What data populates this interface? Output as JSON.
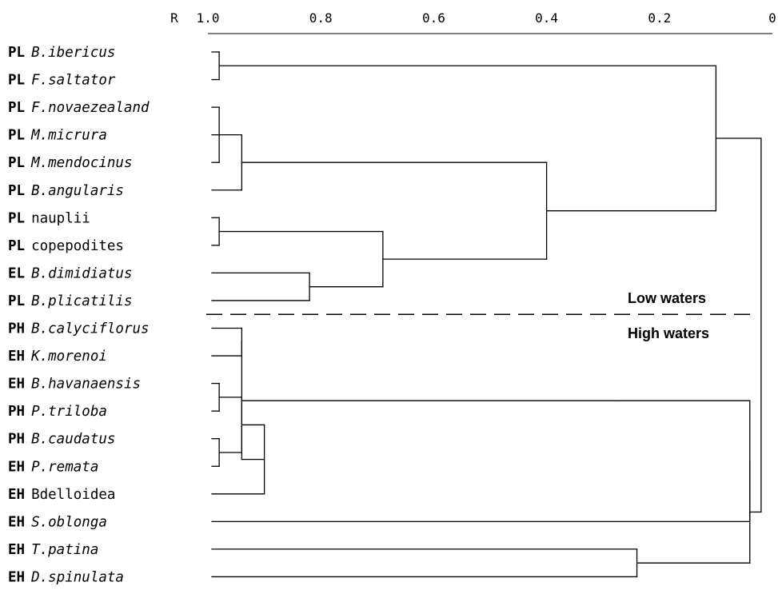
{
  "chart_data": {
    "type": "dendrogram",
    "axis_label": "R",
    "ticks": [
      "1.0",
      "0.8",
      "0.6",
      "0.4",
      "0.2",
      "0"
    ],
    "xlim": [
      1.0,
      0
    ],
    "leaves": [
      {
        "group": "PL",
        "name": "B.ibericus",
        "italic": true
      },
      {
        "group": "PL",
        "name": "F.saltator",
        "italic": true
      },
      {
        "group": "PL",
        "name": "F.novaezealand",
        "italic": true
      },
      {
        "group": "PL",
        "name": "M.micrura",
        "italic": true
      },
      {
        "group": "PL",
        "name": "M.mendocinus",
        "italic": true
      },
      {
        "group": "PL",
        "name": "B.angularis",
        "italic": true
      },
      {
        "group": "PL",
        "name": "nauplii",
        "italic": false
      },
      {
        "group": "PL",
        "name": "copepodites",
        "italic": false
      },
      {
        "group": "EL",
        "name": "B.dimidiatus",
        "italic": true
      },
      {
        "group": "PL",
        "name": "B.plicatilis",
        "italic": true
      },
      {
        "group": "PH",
        "name": "B.calyciflorus",
        "italic": true
      },
      {
        "group": "EH",
        "name": "K.morenoi",
        "italic": true
      },
      {
        "group": "EH",
        "name": "B.havanaensis",
        "italic": true
      },
      {
        "group": "PH",
        "name": "P.triloba",
        "italic": true
      },
      {
        "group": "PH",
        "name": "B.caudatus",
        "italic": true
      },
      {
        "group": "EH",
        "name": "P.remata",
        "italic": true
      },
      {
        "group": "EH",
        "name": "Bdelloidea",
        "italic": false
      },
      {
        "group": "EH",
        "name": "S.oblonga",
        "italic": true
      },
      {
        "group": "EH",
        "name": "T.patina",
        "italic": true
      },
      {
        "group": "EH",
        "name": "D.spinulata",
        "italic": true
      }
    ],
    "merges": [
      {
        "children": [
          "L0",
          "L1"
        ],
        "r": 0.98
      },
      {
        "children": [
          "L2",
          "L3",
          "L4"
        ],
        "r": 0.98
      },
      {
        "children": [
          "L6",
          "L7"
        ],
        "r": 0.98
      },
      {
        "children": [
          "L12",
          "L13"
        ],
        "r": 0.98
      },
      {
        "children": [
          "L14",
          "L15"
        ],
        "r": 0.98
      },
      {
        "children": [
          "N1",
          "L5"
        ],
        "r": 0.94
      },
      {
        "children": [
          "L8",
          "L9"
        ],
        "r": 0.82
      },
      {
        "children": [
          "N2",
          "N6"
        ],
        "r": 0.69
      },
      {
        "children": [
          "N5",
          "N7"
        ],
        "r": 0.4
      },
      {
        "children": [
          "N0",
          "N8"
        ],
        "r": 0.1
      },
      {
        "children": [
          "L10",
          "L11"
        ],
        "r": 0.94
      },
      {
        "children": [
          "N3",
          "N4"
        ],
        "r": 0.94
      },
      {
        "children": [
          "N11",
          "L16"
        ],
        "r": 0.9
      },
      {
        "children": [
          "N10",
          "N12"
        ],
        "r": 0.94
      },
      {
        "children": [
          "N13"
        ],
        "r": 0.28
      },
      {
        "children": [
          "L18",
          "L19"
        ],
        "r": 0.24
      },
      {
        "children": [
          "N14",
          "L17"
        ],
        "r": 0.04
      },
      {
        "children": [
          "N16",
          "N15"
        ],
        "r": 0.04
      },
      {
        "children": [
          "N9",
          "N17"
        ],
        "r": 0.02
      }
    ],
    "annotations": [
      "Low waters",
      "High waters"
    ],
    "divider_after_leaf": 9
  }
}
